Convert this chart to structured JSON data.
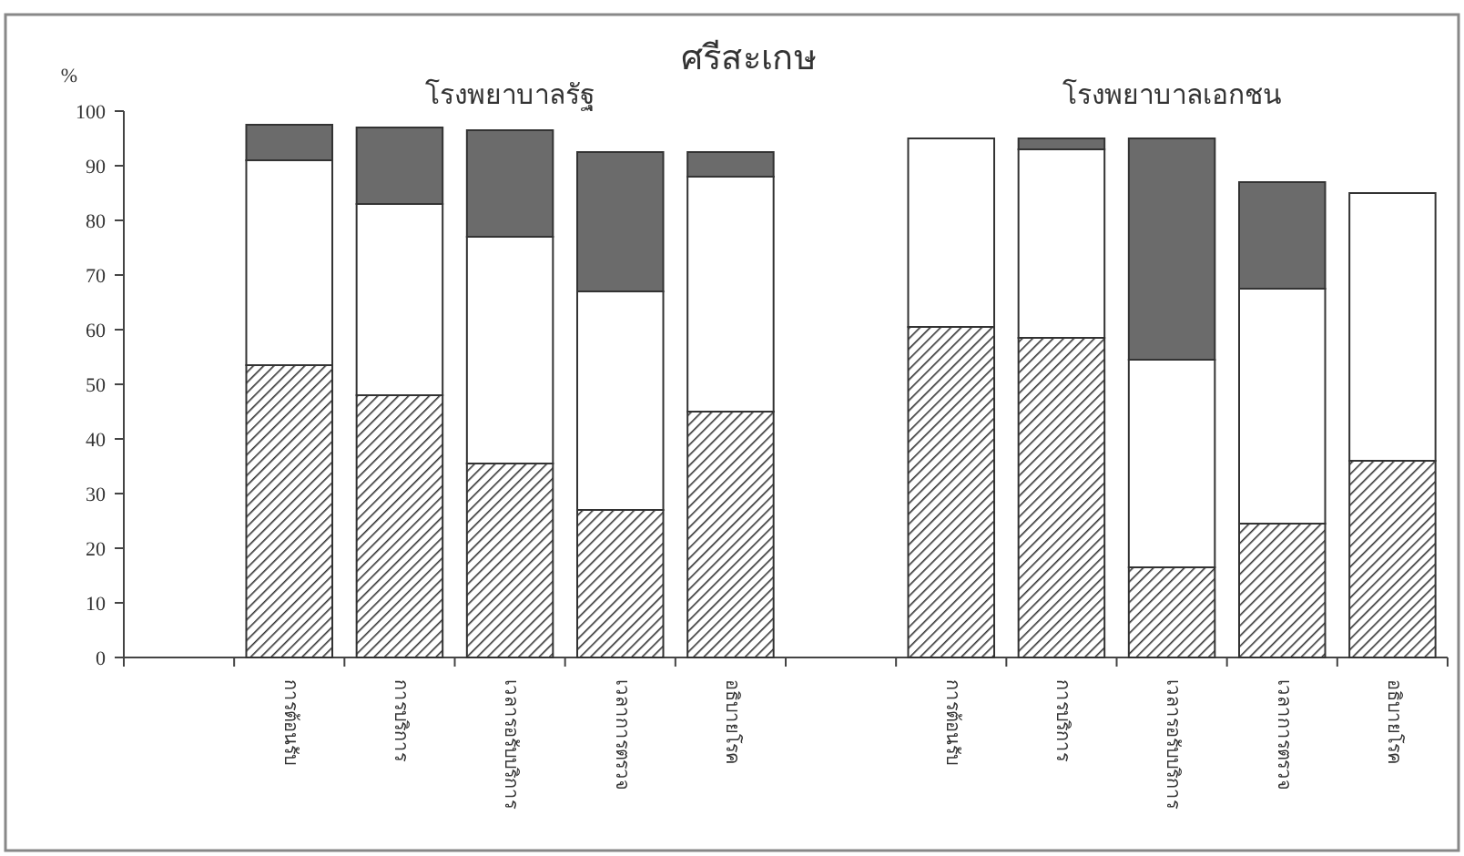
{
  "chart_data": {
    "type": "bar",
    "title": "ศรีสะเกษ",
    "ylabel": "%",
    "stacked": true,
    "annotations": [
      "โรงพยาบาลรัฐ",
      "โรงพยาบาลเอกชน"
    ],
    "categories": [
      null,
      "การต้อนรับ",
      "การบริการ",
      "เวลารอรับบริการ",
      "เวลาการตรวจ",
      "อธิบายโรค",
      null,
      "การต้อนรับ",
      "การบริการ",
      "เวลารอรับบริการ",
      "เวลาการตรวจ",
      "อธิบายโรค"
    ],
    "series": [
      {
        "color": "#333333",
        "values": [
          null,
          53.5,
          48,
          35.5,
          27,
          45,
          null,
          60.5,
          58.5,
          16.5,
          24.5,
          36
        ]
      },
      {
        "color": "#ffffff",
        "values": [
          null,
          37.5,
          35,
          41.5,
          40,
          43,
          null,
          34.5,
          34.5,
          38,
          43,
          49
        ]
      },
      {
        "color": "#6b6b6b",
        "values": [
          null,
          6.5,
          14,
          19.5,
          25.5,
          4.5,
          null,
          0,
          2,
          40.5,
          19.5,
          0
        ]
      }
    ],
    "ylim": [
      0,
      100
    ],
    "yticks": [
      0,
      10,
      20,
      30,
      40,
      50,
      60,
      70,
      80,
      90,
      100
    ]
  }
}
